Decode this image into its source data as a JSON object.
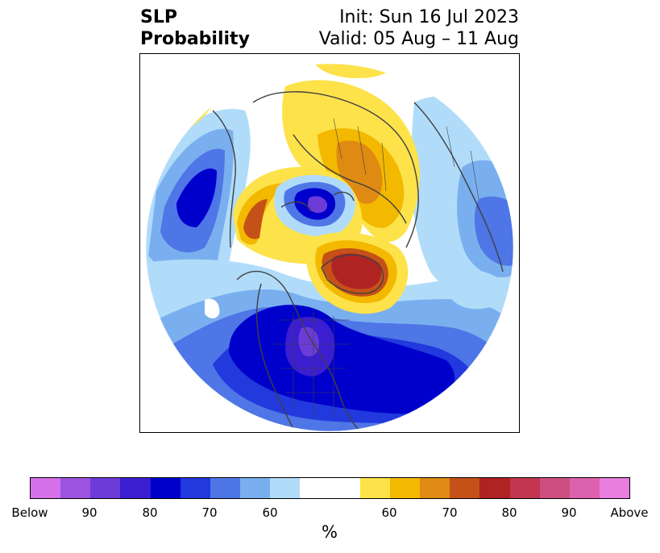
{
  "header": {
    "title_line1": "SLP",
    "title_line2": "Probability",
    "init_text": "Init: Sun 16 Jul 2023",
    "valid_text": "Valid: 05 Aug – 11 Aug"
  },
  "colorbar": {
    "unit": "%",
    "colors": [
      "#d670e8",
      "#9c53e0",
      "#6d3bd8",
      "#3b1ed0",
      "#0000cc",
      "#2239dd",
      "#4e76e6",
      "#7aafef",
      "#b0dcfa",
      "#ffffff",
      "#ffffff",
      "#fde24a",
      "#f3b800",
      "#df8a12",
      "#c55118",
      "#b02323",
      "#c23650",
      "#cc4f7f",
      "#dd62ad",
      "#e77ddc"
    ],
    "labels": [
      "Below",
      "90",
      "80",
      "70",
      "60",
      "60",
      "70",
      "80",
      "90",
      "Above"
    ]
  },
  "map": {
    "projection": "north-polar-stereographic",
    "colors": {
      "blue_light": "#b0dcfa",
      "blue_60": "#7aafef",
      "blue_70": "#4e76e6",
      "blue_75": "#2239dd",
      "blue_80": "#0000cc",
      "purple_85": "#3b1ed0",
      "purple_90": "#6d3bd8",
      "purple_95": "#9c53e0",
      "yellow_55": "#fde24a",
      "orange_60": "#f3b800",
      "orange_70": "#df8a12",
      "orange_75": "#c55118",
      "red_80": "#b02323",
      "coast": "#404040"
    }
  }
}
